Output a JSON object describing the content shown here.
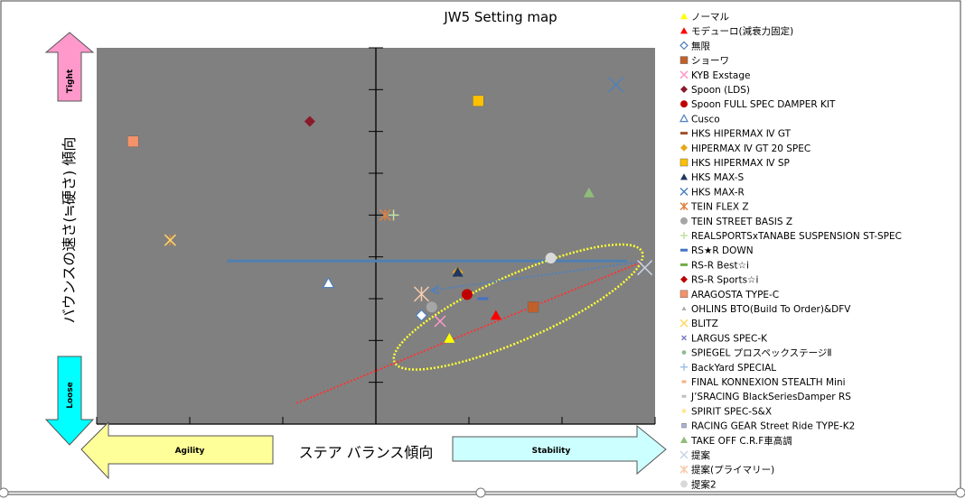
{
  "chart_data": {
    "type": "scatter",
    "title": "JW5 Setting map",
    "xlabel": "ステア バランス傾向",
    "ylabel": "バウンスの速さ(≒硬さ) 傾向",
    "xlim": [
      -3,
      3
    ],
    "ylim": [
      0,
      9
    ],
    "grid": false,
    "legend_placement": "right",
    "plot_background": "#808080",
    "arrows": {
      "up": {
        "label": "Tight",
        "color": "#ff99cc"
      },
      "down": {
        "label": "Loose",
        "color": "#00ffff"
      },
      "left": {
        "label": "Agility",
        "color": "#ffff99"
      },
      "right": {
        "label": "Stability",
        "color": "#ccffff"
      }
    },
    "series": [
      {
        "name": "ノーマル",
        "marker": "triangle",
        "color": "#ffff00",
        "points": [
          [
            0.79,
            2.05
          ]
        ]
      },
      {
        "name": "モデューロ(減衰力固定)",
        "marker": "triangle",
        "color": "#ff0000",
        "points": [
          [
            1.29,
            2.6
          ]
        ]
      },
      {
        "name": "無限",
        "marker": "diamond-open",
        "color": "#ffffff",
        "points": [
          [
            0.49,
            2.6
          ]
        ]
      },
      {
        "name": "ショーワ",
        "marker": "square",
        "color": "#c0602a",
        "points": [
          [
            1.69,
            2.8
          ]
        ]
      },
      {
        "name": "KYB  Exstage",
        "marker": "x",
        "color": "#ff99cc",
        "points": [
          [
            0.69,
            2.46
          ]
        ]
      },
      {
        "name": "Spoon (LDS)",
        "marker": "diamond",
        "color": "#8b1a2b",
        "points": [
          [
            -0.71,
            7.24
          ]
        ]
      },
      {
        "name": "Spoon FULL SPEC DAMPER KIT",
        "marker": "circle",
        "color": "#c00000",
        "points": [
          [
            0.98,
            3.1
          ]
        ]
      },
      {
        "name": "Cusco",
        "marker": "triangle-open",
        "color": "#4f81bd",
        "points": [
          [
            -0.51,
            3.37
          ]
        ]
      },
      {
        "name": "HKS HIPERMAX Ⅳ GT",
        "marker": "dash",
        "color": "#a0522d",
        "points": []
      },
      {
        "name": "HIPERMAX Ⅳ GT 20 SPEC",
        "marker": "diamond",
        "color": "#e6a817",
        "points": [
          [
            0.88,
            3.63
          ]
        ]
      },
      {
        "name": "HKS HIPERMAX Ⅳ SP",
        "marker": "square",
        "color": "#ffc000",
        "points": [
          [
            1.1,
            7.73
          ]
        ]
      },
      {
        "name": "HKS MAX-S",
        "marker": "triangle",
        "color": "#1f3864",
        "points": [
          [
            0.88,
            3.63
          ]
        ]
      },
      {
        "name": "HKS MAX-R",
        "marker": "x",
        "color": "#4f81bd",
        "points": [
          [
            2.58,
            8.12
          ]
        ]
      },
      {
        "name": "TEIN FLEX Z",
        "marker": "asterisk",
        "color": "#e08040",
        "points": [
          [
            0.1,
            5.0
          ],
          [
            -2.21,
            4.4
          ]
        ]
      },
      {
        "name": "TEIN STREET BASIS Z",
        "marker": "circle",
        "color": "#a6a6a6",
        "points": [
          [
            0.6,
            2.8
          ]
        ]
      },
      {
        "name": "REALSPORTSxTANABE SUSPENSION ST-SPEC",
        "marker": "plus",
        "color": "#c4e0a0",
        "points": [
          [
            0.19,
            5.0
          ]
        ]
      },
      {
        "name": "RS★R DOWN",
        "marker": "dash",
        "color": "#4472c4",
        "points": [
          [
            1.15,
            3.0
          ]
        ]
      },
      {
        "name": "RS-R Best☆i",
        "marker": "dash",
        "color": "#70ad47",
        "points": []
      },
      {
        "name": "RS-R Sports☆i",
        "marker": "diamond",
        "color": "#c00000",
        "points": []
      },
      {
        "name": "ARAGOSTA TYPE-C",
        "marker": "square",
        "color": "#f4926a",
        "points": [
          [
            -2.61,
            6.76
          ]
        ]
      },
      {
        "name": "OHLINS BTO(Build To Order)&DFV",
        "marker": "triangle-small",
        "color": "#a6a6a6",
        "points": []
      },
      {
        "name": "BLITZ",
        "marker": "x",
        "color": "#ffd966",
        "points": [
          [
            -2.21,
            4.4
          ]
        ]
      },
      {
        "name": "LARGUS SPEC-K",
        "marker": "x-small",
        "color": "#7f7fbf",
        "points": []
      },
      {
        "name": "SPIEGEL プロスペックステージⅡ",
        "marker": "circle-small",
        "color": "#8fbc8f",
        "points": []
      },
      {
        "name": "BackYard SPECIAL",
        "marker": "plus",
        "color": "#9dc3e6",
        "points": []
      },
      {
        "name": "FINAL KONNEXION STEALTH Mini",
        "marker": "dash-small",
        "color": "#f4b183",
        "points": []
      },
      {
        "name": "J’SRACING BlackSeriesDamper RS",
        "marker": "dash-small",
        "color": "#bfbfbf",
        "points": []
      },
      {
        "name": "SPIRIT SPEC-S&X",
        "marker": "circle-small",
        "color": "#ffe699",
        "points": []
      },
      {
        "name": "RACING GEAR Street Ride TYPE-K2",
        "marker": "square-small",
        "color": "#a9b4d8",
        "points": []
      },
      {
        "name": "TAKE OFF C.R.F車高調",
        "marker": "triangle",
        "color": "#8fbc7a",
        "points": [
          [
            2.29,
            5.53
          ]
        ]
      },
      {
        "name": "提案",
        "marker": "x",
        "color": "#c9d3e6",
        "points": [
          [
            2.89,
            3.74
          ]
        ]
      },
      {
        "name": "提案(プライマリー)",
        "marker": "asterisk",
        "color": "#f8cbad",
        "points": [
          [
            0.49,
            3.11
          ]
        ]
      },
      {
        "name": "提案2",
        "marker": "circle",
        "color": "#d9d9d9",
        "points": [
          [
            1.88,
            3.97
          ]
        ]
      }
    ],
    "annotations": {
      "hline": {
        "y": 3.9,
        "x_from": -1.6,
        "x_to": 2.7,
        "color": "#4f7fb0"
      },
      "trend_line": {
        "from": [
          -0.85,
          0.5
        ],
        "to": [
          2.87,
          3.89
        ],
        "color": "#ff3333"
      },
      "arrow": {
        "from": [
          2.87,
          3.89
        ],
        "to": [
          0.6,
          3.2
        ],
        "color": "#4f81bd"
      },
      "ellipse": {
        "center": [
          1.53,
          2.8
        ],
        "color": "#ffff33"
      }
    }
  }
}
